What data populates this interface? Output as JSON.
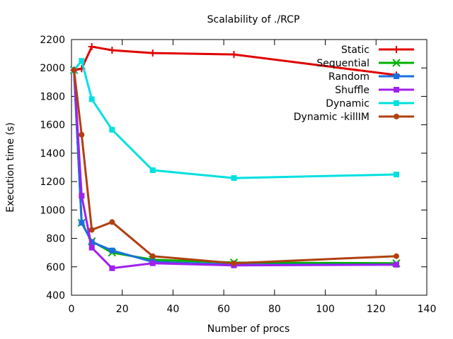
{
  "chart_data": {
    "type": "line",
    "title": "Scalability of ./RCP",
    "xlabel": "Number of procs",
    "ylabel": "Execution time (s)",
    "xlim": [
      0,
      140
    ],
    "ylim": [
      400,
      2200
    ],
    "xticks": [
      0,
      20,
      40,
      60,
      80,
      100,
      120,
      140
    ],
    "yticks": [
      400,
      600,
      800,
      1000,
      1200,
      1400,
      1600,
      1800,
      2000,
      2200
    ],
    "grid": false,
    "legend_position": "top-right",
    "series": [
      {
        "name": "Static",
        "color": "#e00000",
        "marker": "plus",
        "x": [
          1,
          4,
          8,
          16,
          32,
          64,
          128
        ],
        "y": [
          1985,
          1995,
          2150,
          2125,
          2105,
          2095,
          1950
        ]
      },
      {
        "name": "Sequential",
        "color": "#00b000",
        "marker": "cross",
        "x": [
          1,
          4,
          8,
          16,
          32,
          64,
          128
        ],
        "y": [
          1985,
          910,
          780,
          700,
          650,
          630,
          625
        ]
      },
      {
        "name": "Random",
        "color": "#1a6fe0",
        "marker": "square",
        "x": [
          1,
          4,
          8,
          16,
          32,
          64,
          128
        ],
        "y": [
          1985,
          910,
          775,
          715,
          635,
          615,
          615
        ]
      },
      {
        "name": "Shuffle",
        "color": "#a020f0",
        "marker": "square",
        "x": [
          1,
          4,
          8,
          16,
          32,
          64,
          128
        ],
        "y": [
          1985,
          1100,
          735,
          590,
          625,
          610,
          615
        ]
      },
      {
        "name": "Dynamic",
        "color": "#00e0e0",
        "marker": "square",
        "x": [
          1,
          4,
          8,
          16,
          32,
          64,
          128
        ],
        "y": [
          1985,
          2050,
          1780,
          1565,
          1280,
          1225,
          1250
        ]
      },
      {
        "name": "Dynamic -killIM",
        "color": "#b04010",
        "marker": "circle",
        "x": [
          1,
          4,
          8,
          16,
          32,
          64,
          128
        ],
        "y": [
          1985,
          1530,
          860,
          915,
          675,
          625,
          675
        ]
      }
    ]
  }
}
